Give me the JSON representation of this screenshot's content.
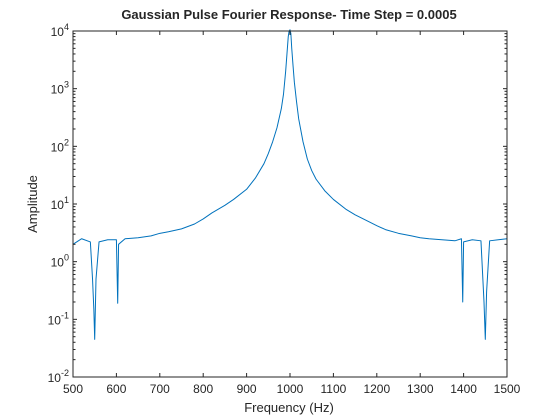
{
  "chart_data": {
    "type": "line",
    "title": "Gaussian Pulse Fourier Response- Time Step = 0.0005",
    "xlabel": "Frequency (Hz)",
    "ylabel": "Amplitude",
    "xlim": [
      500,
      1500
    ],
    "ylim": [
      0.01,
      10000
    ],
    "yscale": "log",
    "grid": false,
    "legend": "none",
    "x_ticks": [
      500,
      600,
      700,
      800,
      900,
      1000,
      1100,
      1200,
      1300,
      1400,
      1500
    ],
    "x_tick_labels": [
      "500",
      "600",
      "700",
      "800",
      "900",
      "1000",
      "1100",
      "1200",
      "1300",
      "1400",
      "1500"
    ],
    "y_ticks": [
      0.01,
      0.1,
      1,
      10,
      100,
      1000,
      10000
    ],
    "y_tick_labels": [
      {
        "base": "10",
        "exp": "-2"
      },
      {
        "base": "10",
        "exp": "-1"
      },
      {
        "base": "10",
        "exp": "0"
      },
      {
        "base": "10",
        "exp": "1"
      },
      {
        "base": "10",
        "exp": "2"
      },
      {
        "base": "10",
        "exp": "3"
      },
      {
        "base": "10",
        "exp": "4"
      }
    ],
    "series": [
      {
        "color": "#0072bd",
        "x": [
          500,
          520,
          540,
          545,
          548,
          550,
          553,
          560,
          580,
          600,
          603,
          605,
          620,
          650,
          680,
          700,
          720,
          750,
          780,
          800,
          820,
          850,
          870,
          900,
          920,
          940,
          950,
          960,
          970,
          980,
          985,
          990,
          993,
          996,
          998,
          1000,
          1002,
          1004,
          1007,
          1010,
          1015,
          1020,
          1030,
          1040,
          1050,
          1060,
          1080,
          1100,
          1130,
          1150,
          1180,
          1200,
          1220,
          1250,
          1280,
          1300,
          1320,
          1350,
          1380,
          1395,
          1398,
          1400,
          1420,
          1440,
          1447,
          1450,
          1453,
          1460,
          1480,
          1500
        ],
        "y": [
          2,
          2.5,
          2.2,
          0.5,
          0.15,
          0.045,
          0.5,
          2.2,
          2.4,
          2.4,
          0.19,
          2,
          2.5,
          2.6,
          2.8,
          3.1,
          3.3,
          3.7,
          4.5,
          5.5,
          7,
          9.5,
          12,
          18,
          28,
          50,
          75,
          120,
          210,
          450,
          800,
          2000,
          4000,
          8000,
          10000,
          10500,
          9000,
          5000,
          2500,
          1300,
          600,
          300,
          120,
          60,
          38,
          27,
          17,
          12,
          8,
          6.5,
          5,
          4.2,
          3.6,
          3.1,
          2.8,
          2.6,
          2.5,
          2.4,
          2.3,
          2.5,
          0.2,
          2.2,
          2.4,
          2.3,
          0.2,
          0.045,
          0.3,
          2.3,
          2.4,
          2.5
        ]
      }
    ]
  }
}
